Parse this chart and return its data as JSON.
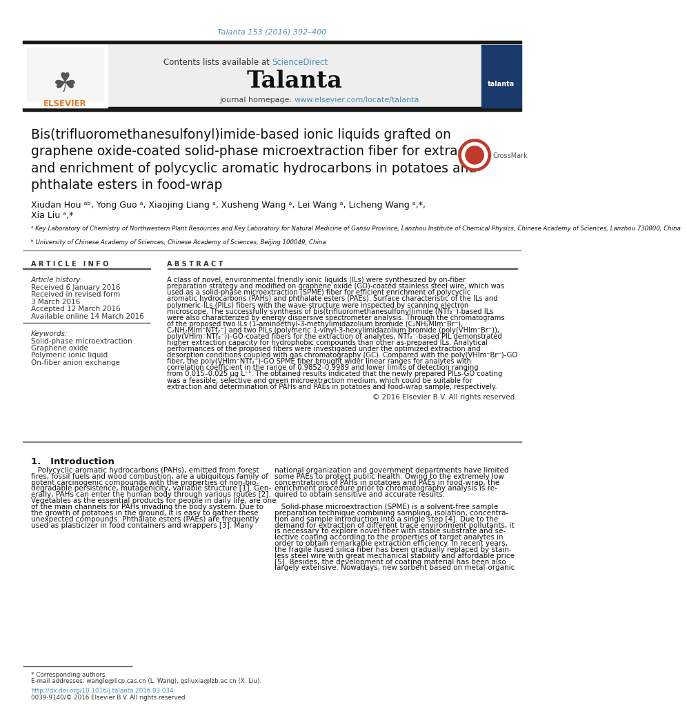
{
  "journal_ref": "Talanta 153 (2016) 392–400",
  "journal_name": "Talanta",
  "contents_text": "Contents lists available at ",
  "sciencedirect_text": "ScienceDirect",
  "journal_homepage_text": "journal homepage: ",
  "journal_url": "www.elsevier.com/locate/talanta",
  "title_line1": "Bis(trifluoromethanesulfonyl)imide-based ionic liquids grafted on",
  "title_line2": "graphene oxide-coated solid-phase microextraction fiber for extraction",
  "title_line3": "and enrichment of polycyclic aromatic hydrocarbons in potatoes and",
  "title_line4": "phthalate esters in food-wrap",
  "authors_line1": "Xiudan Hou ᵃᵇ, Yong Guo ᵃ, Xiaojing Liang ᵃ, Xusheng Wang ᵃ, Lei Wang ᵃ, Licheng Wang ᵃ,*,",
  "authors_line2": "Xia Liu ᵃ,*",
  "affil_a": "ᵃ Key Laboratory of Chemistry of Northwestern Plant Resources and Key Laboratory for Natural Medicine of Gansu Province, Lanzhou Institute of Chemical Physics, Chinese Academy of Sciences, Lanzhou 730000, China",
  "affil_b": "ᵇ University of Chinese Academy of Sciences, Chinese Academy of Sciences, Beijing 100049, China",
  "article_info_header": "A R T I C L E   I N F O",
  "article_history_label": "Article history:",
  "received": "Received 6 January 2016",
  "received_revised": "Received in revised form",
  "revised_date": "3 March 2016",
  "accepted": "Accepted 12 March 2016",
  "available": "Available online 14 March 2016",
  "keywords_label": "Keywords:",
  "keywords": [
    "Solid-phase microextraction",
    "Graphene oxide",
    "Polymeric ionic liquid",
    "On-fiber anion exchange"
  ],
  "abstract_header": "A B S T R A C T",
  "abstract_text": "A class of novel, environmental friendly ionic liquids (ILs) were synthesized by on-fiber preparation strategy and modified on graphene oxide (GO)-coated stainless steel wire, which was used as a solid-phase microextraction (SPME) fiber for efficient enrichment of polycyclic aromatic hydrocarbons (PAHs) and phthalate esters (PAEs). Surface characteristic of the ILs and polymeric-ILs (PILs) fibers with the wave-structure were inspected by scanning electron microscope. The successfully synthesis of bis(trifluoromethanesulfonyl)imide (NTf₂⁻)-based ILs were also characterized by energy dispersive spectrometer analysis. Through the chromatograms of the proposed two ILs (1-aminoethyl-3-methylimidazolium bromide (C₂NH₂MIm⁻Br⁻), C₂NH₂MIm⁻NTf₂⁻) and two PILs (polymeric 1-vinyl-3-hexylimidazolium bromide (poly(VHIm⁻Br⁻)), poly(VHIm⁻NTf₂⁻))-GO-coated fibers for the extraction of analytes, NTf₂⁻-based PIL demonstrated higher extraction capacity for hydrophobic compounds than other as-prepared ILs. Analytical performances of the proposed fibers were investigated under the optimized extraction and desorption conditions coupled with gas chromatography (GC). Compared with the poly(VHIm⁻Br⁻)-GO fiber, the poly(VHIm⁻NTf₂⁻)-GO SPME fiber brought wider linear ranges for analytes with correlation coefficient in the range of 0.9852–0.9989 and lower limits of detection ranging from 0.015–0.025 μg L⁻¹. The obtained results indicated that the newly prepared PILs-GO coating was a feasible, selective and green microextraction medium, which could be suitable for extraction and determination of PAHs and PAEs in potatoes and food-wrap sample, respectively.",
  "copyright": "© 2016 Elsevier B.V. All rights reserved.",
  "intro_header": "1.   Introduction",
  "intro_col1_lines": [
    "   Polycyclic aromatic hydrocarbons (PAHs), emitted from forest",
    "fires, fossil fuels and wood combustion, are a ubiquitous family of",
    "potent carcinogenic compounds with the properties of non-bio-",
    "degradable persistence, mutagenicity, variable structure [1]. Gen-",
    "erally, PAHs can enter the human body through various routes [2].",
    "Vegetables as the essential products for people in daily life, are one",
    "of the main channels for PAHs invading the body system. Due to",
    "the growth of potatoes in the ground, it is easy to gather these",
    "unexpected compounds. Phthalate esters (PAEs) are frequently",
    "used as plasticizer in food containers and wrappers [3]. Many"
  ],
  "intro_col2_lines": [
    "national organization and government departments have limited",
    "some PAEs to protect public health. Owing to the extremely low",
    "concentrations of PAHs in potatoes and PAEs in food-wrap, the",
    "enrichment procedure prior to chromatography analysis is re-",
    "quired to obtain sensitive and accurate results.",
    "",
    "   Solid-phase microextraction (SPME) is a solvent-free sample",
    "preparation technique combining sampling, isolation, concentra-",
    "tion and sample introduction into a single step [4]. Due to the",
    "demand for extraction of different trace environment pollutants, it",
    "is necessary to explore novel fiber with stable substrate and se-",
    "lective coating according to the properties of target analytes in",
    "order to obtain remarkable extraction efficiency. In recent years,",
    "the fragile fused silica fiber has been gradually replaced by stain-",
    "less steel wire with great mechanical stability and affordable price",
    "[5]. Besides, the development of coating material has been also",
    "largely extensive. Nowadays, new sorbent based on metal-organic"
  ],
  "footnote_corresponding": "* Corresponding authors.",
  "footnote_email": "E-mail addresses: wangle@licp.cas.cn (L. Wang), gsliuxia@lzb.ac.cn (X. Liu).",
  "footnote_doi": "http://dx.doi.org/10.1016/j.talanta.2016.03.034",
  "footnote_issn": "0039-9140/© 2016 Elsevier B.V. All rights reserved.",
  "bg_color": "#ffffff",
  "dark_bar_color": "#1a1a1a",
  "link_color": "#4a90b8",
  "orange_color": "#e87722",
  "title_fontsize": 13.5,
  "body_fontsize": 7.5,
  "small_fontsize": 6.2,
  "abstract_fontsize": 7.2,
  "header_gray": "#eeeeee"
}
